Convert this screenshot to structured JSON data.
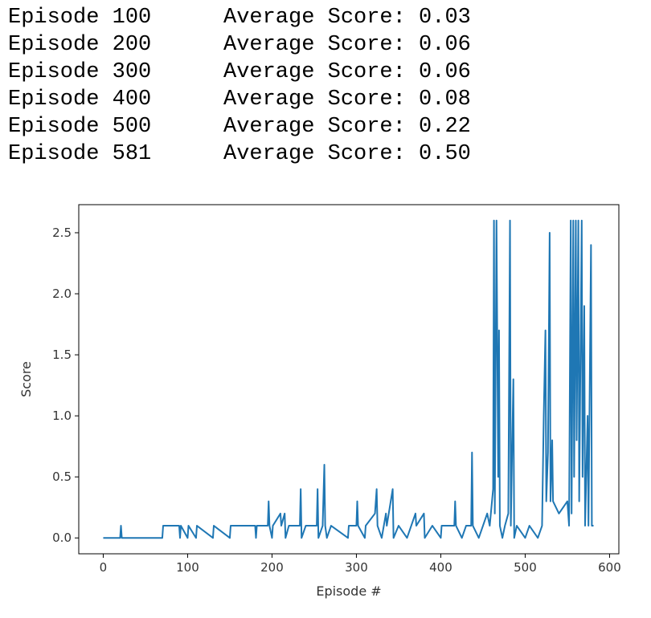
{
  "log": [
    {
      "episode": "Episode 100",
      "score": "Average Score: 0.03"
    },
    {
      "episode": "Episode 200",
      "score": "Average Score: 0.06"
    },
    {
      "episode": "Episode 300",
      "score": "Average Score: 0.06"
    },
    {
      "episode": "Episode 400",
      "score": "Average Score: 0.08"
    },
    {
      "episode": "Episode 500",
      "score": "Average Score: 0.22"
    },
    {
      "episode": "Episode 581",
      "score": "Average Score: 0.50"
    }
  ],
  "chart_data": {
    "type": "line",
    "xlabel": "Episode #",
    "ylabel": "Score",
    "color": "#1f77b4",
    "x": [
      0,
      20,
      21,
      22,
      70,
      71,
      90,
      91,
      92,
      100,
      101,
      110,
      111,
      130,
      131,
      150,
      151,
      180,
      181,
      182,
      195,
      196,
      197,
      200,
      201,
      210,
      211,
      215,
      216,
      220,
      233,
      234,
      235,
      240,
      253,
      254,
      255,
      260,
      262,
      263,
      265,
      270,
      290,
      291,
      300,
      301,
      302,
      310,
      311,
      322,
      324,
      325,
      330,
      335,
      336,
      343,
      344,
      350,
      360,
      370,
      371,
      380,
      381,
      390,
      400,
      401,
      416,
      417,
      418,
      425,
      430,
      436,
      437,
      438,
      445,
      450,
      455,
      458,
      462,
      463,
      464,
      466,
      468,
      469,
      470,
      473,
      476,
      480,
      482,
      483,
      486,
      487,
      490,
      500,
      505,
      515,
      520,
      522,
      524,
      525,
      527,
      529,
      530,
      532,
      533,
      540,
      550,
      552,
      554,
      555,
      557,
      558,
      560,
      561,
      563,
      564,
      567,
      568,
      570,
      571,
      574,
      575,
      578,
      579,
      581
    ],
    "values": [
      0,
      0,
      0.1,
      0,
      0,
      0.1,
      0.1,
      0,
      0.1,
      0,
      0.1,
      0,
      0.1,
      0,
      0.1,
      0,
      0.1,
      0.1,
      0,
      0.1,
      0.1,
      0.3,
      0.1,
      0,
      0.1,
      0.2,
      0.1,
      0.2,
      0,
      0.1,
      0.1,
      0.4,
      0,
      0.1,
      0.1,
      0.4,
      0,
      0.1,
      0.6,
      0.1,
      0,
      0.1,
      0,
      0.1,
      0.1,
      0.3,
      0.1,
      0,
      0.1,
      0.2,
      0.4,
      0.1,
      0,
      0.2,
      0.1,
      0.4,
      0,
      0.1,
      0,
      0.2,
      0.1,
      0.2,
      0,
      0.1,
      0,
      0.1,
      0.1,
      0.3,
      0.1,
      0,
      0.1,
      0.1,
      0.7,
      0.1,
      0,
      0.1,
      0.2,
      0.1,
      0.4,
      2.6,
      0.2,
      2.6,
      0.5,
      1.7,
      0.1,
      0,
      0.1,
      0.2,
      2.6,
      0.1,
      1.3,
      0,
      0.1,
      0,
      0.1,
      0,
      0.1,
      1.0,
      1.7,
      0.3,
      0.7,
      2.5,
      0.3,
      0.8,
      0.3,
      0.2,
      0.3,
      0.1,
      2.6,
      0.2,
      2.6,
      0.5,
      2.6,
      0.8,
      2.6,
      0.3,
      2.6,
      0.5,
      1.9,
      0.1,
      1.0,
      0.1,
      2.4,
      0.1,
      0.1
    ],
    "xlim": [
      -29,
      611
    ],
    "ylim": [
      -0.13,
      2.73
    ],
    "xticks": [
      0,
      100,
      200,
      300,
      400,
      500,
      600
    ],
    "yticks": [
      {
        "value": 0,
        "label": "0.0"
      },
      0.5,
      {
        "value": 1,
        "label": "1.0"
      },
      1.5,
      {
        "value": 2,
        "label": "2.0"
      },
      2.5
    ]
  }
}
